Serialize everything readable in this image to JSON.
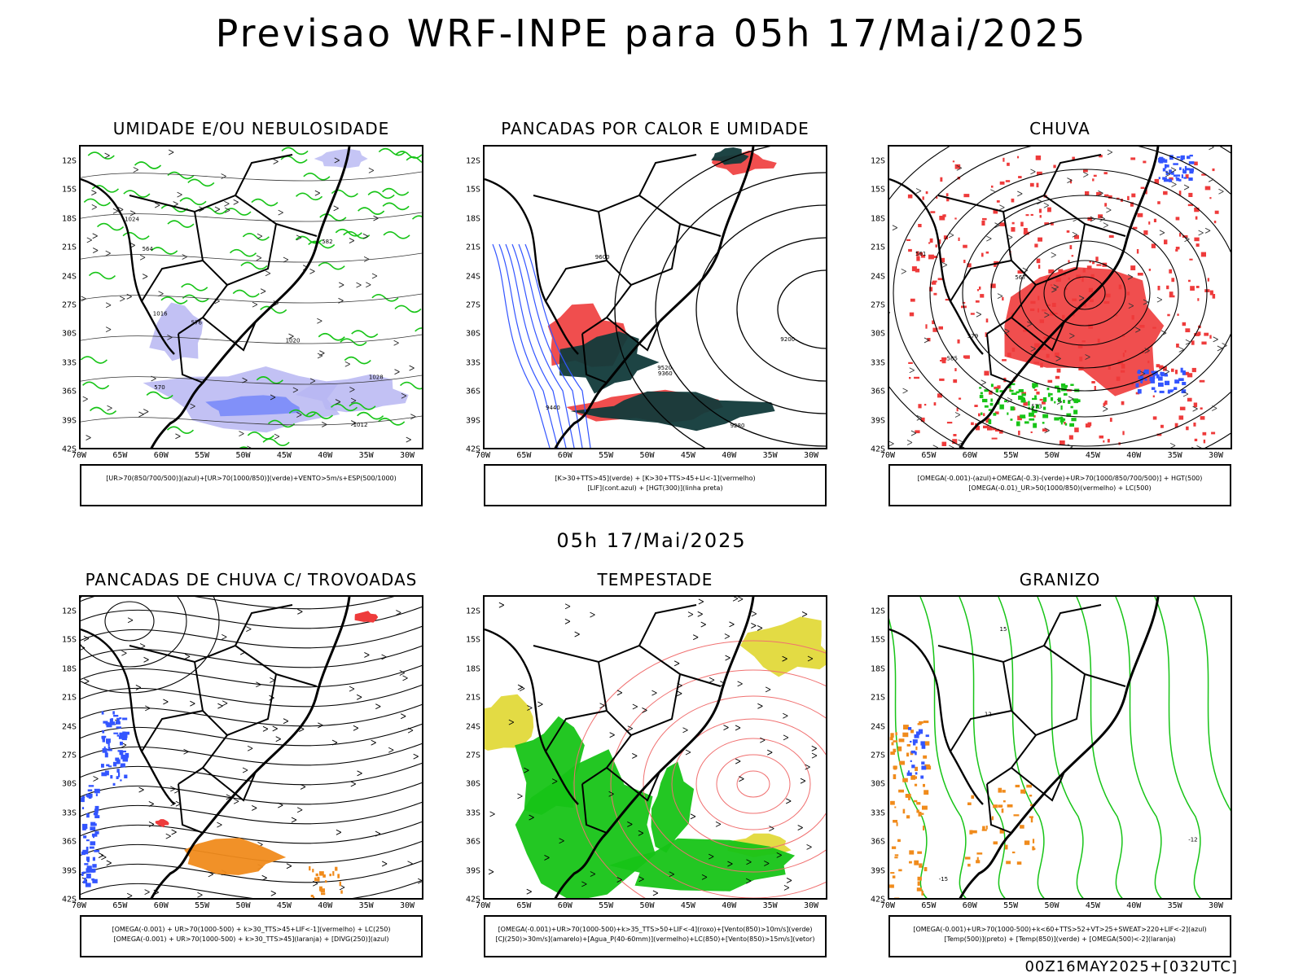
{
  "header": {
    "title": "Previsao WRF-INPE  para 05h 17/Mai/2025"
  },
  "row2_label": "05h 17/Mai/2025",
  "footer": "00Z16MAY2025+[032UTC]",
  "axes": {
    "lat_ticks": [
      "12S",
      "15S",
      "18S",
      "21S",
      "24S",
      "27S",
      "30S",
      "33S",
      "36S",
      "39S",
      "42S"
    ],
    "lon_ticks": [
      "70W",
      "65W",
      "60W",
      "55W",
      "50W",
      "45W",
      "40W",
      "35W",
      "30W"
    ]
  },
  "colors": {
    "green": "#17c417",
    "red": "#ee3b3b",
    "blue": "#3355ff",
    "lavender": "#b7b6f2",
    "darkteal": "#113a3a",
    "orange": "#f08b1c",
    "yellow": "#e2d93a",
    "black": "#000000",
    "salmon": "#f07070"
  },
  "chart_data": [
    {
      "type": "map",
      "title": "UMIDADE E/OU NEBULOSIDADE",
      "legend": [
        "[UR>70(850/700/500)](azul)+[UR>70(1000/850)](verde)+VENTO>5m/s+ESP(500/1000)"
      ],
      "contour_labels": [
        "1012",
        "1016",
        "1020",
        "1024",
        "1028",
        "564",
        "570",
        "576",
        "582"
      ]
    },
    {
      "type": "map",
      "title": "PANCADAS POR CALOR E UMIDADE",
      "legend": [
        "[K>30+TTS>45](verde) + [K>30+TTS>45+LI<-1](vermelho)",
        "[LIF](cont.azul) + [HGT(300)](linha preta)"
      ],
      "contour_labels": [
        "9200",
        "9280",
        "9360",
        "9440",
        "9520",
        "9600"
      ]
    },
    {
      "type": "map",
      "title": "CHUVA",
      "legend": [
        "[OMEGA(-0.001)-(azul)+OMEGA(-0.3)-(verde)+UR>70(1000/850/700/500)] + HGT(500)",
        "[OMEGA(-0.01)_UR>50(1000/850)(vermelho) + LC(500)"
      ],
      "contour_labels": [
        "561",
        "567",
        "573",
        "579",
        "585"
      ]
    },
    {
      "type": "map",
      "title": "PANCADAS DE CHUVA C/ TROVOADAS",
      "legend": [
        "[OMEGA(-0.001) + UR>70(1000-500) + k>30_TTS>45+LIF<-1](vermelho) + LC(250)",
        "[OMEGA(-0.001) + UR>70(1000-500) + k>30_TTS>45](laranja) + [DIVG(250)](azul)"
      ],
      "contour_labels": []
    },
    {
      "type": "map",
      "title": "TEMPESTADE",
      "legend": [
        "[OMEGA(-0.001)+UR>70(1000-500)+k>35_TTS>50+LIF<-4](roxo)+[Vento(850)>10m/s](verde)",
        "[CJ(250)>30m/s](amarelo)+[Agua_P(40-60mm)](vermelho)+LC(850)+[Vento(850)>15m/s](vetor)"
      ],
      "contour_labels": []
    },
    {
      "type": "map",
      "title": "GRANIZO",
      "legend": [
        "[OMEGA(-0.001)+UR>70(1000-500)+k<60+TTS>52+VT>25+SWEAT>220+LIF<-2](azul)",
        "[Temp(500)](preto) + [Temp(850)](verde) + [OMEGA(500)<-2](laranja)"
      ],
      "contour_labels": [
        "-15",
        "-12",
        "15",
        "12"
      ]
    }
  ]
}
